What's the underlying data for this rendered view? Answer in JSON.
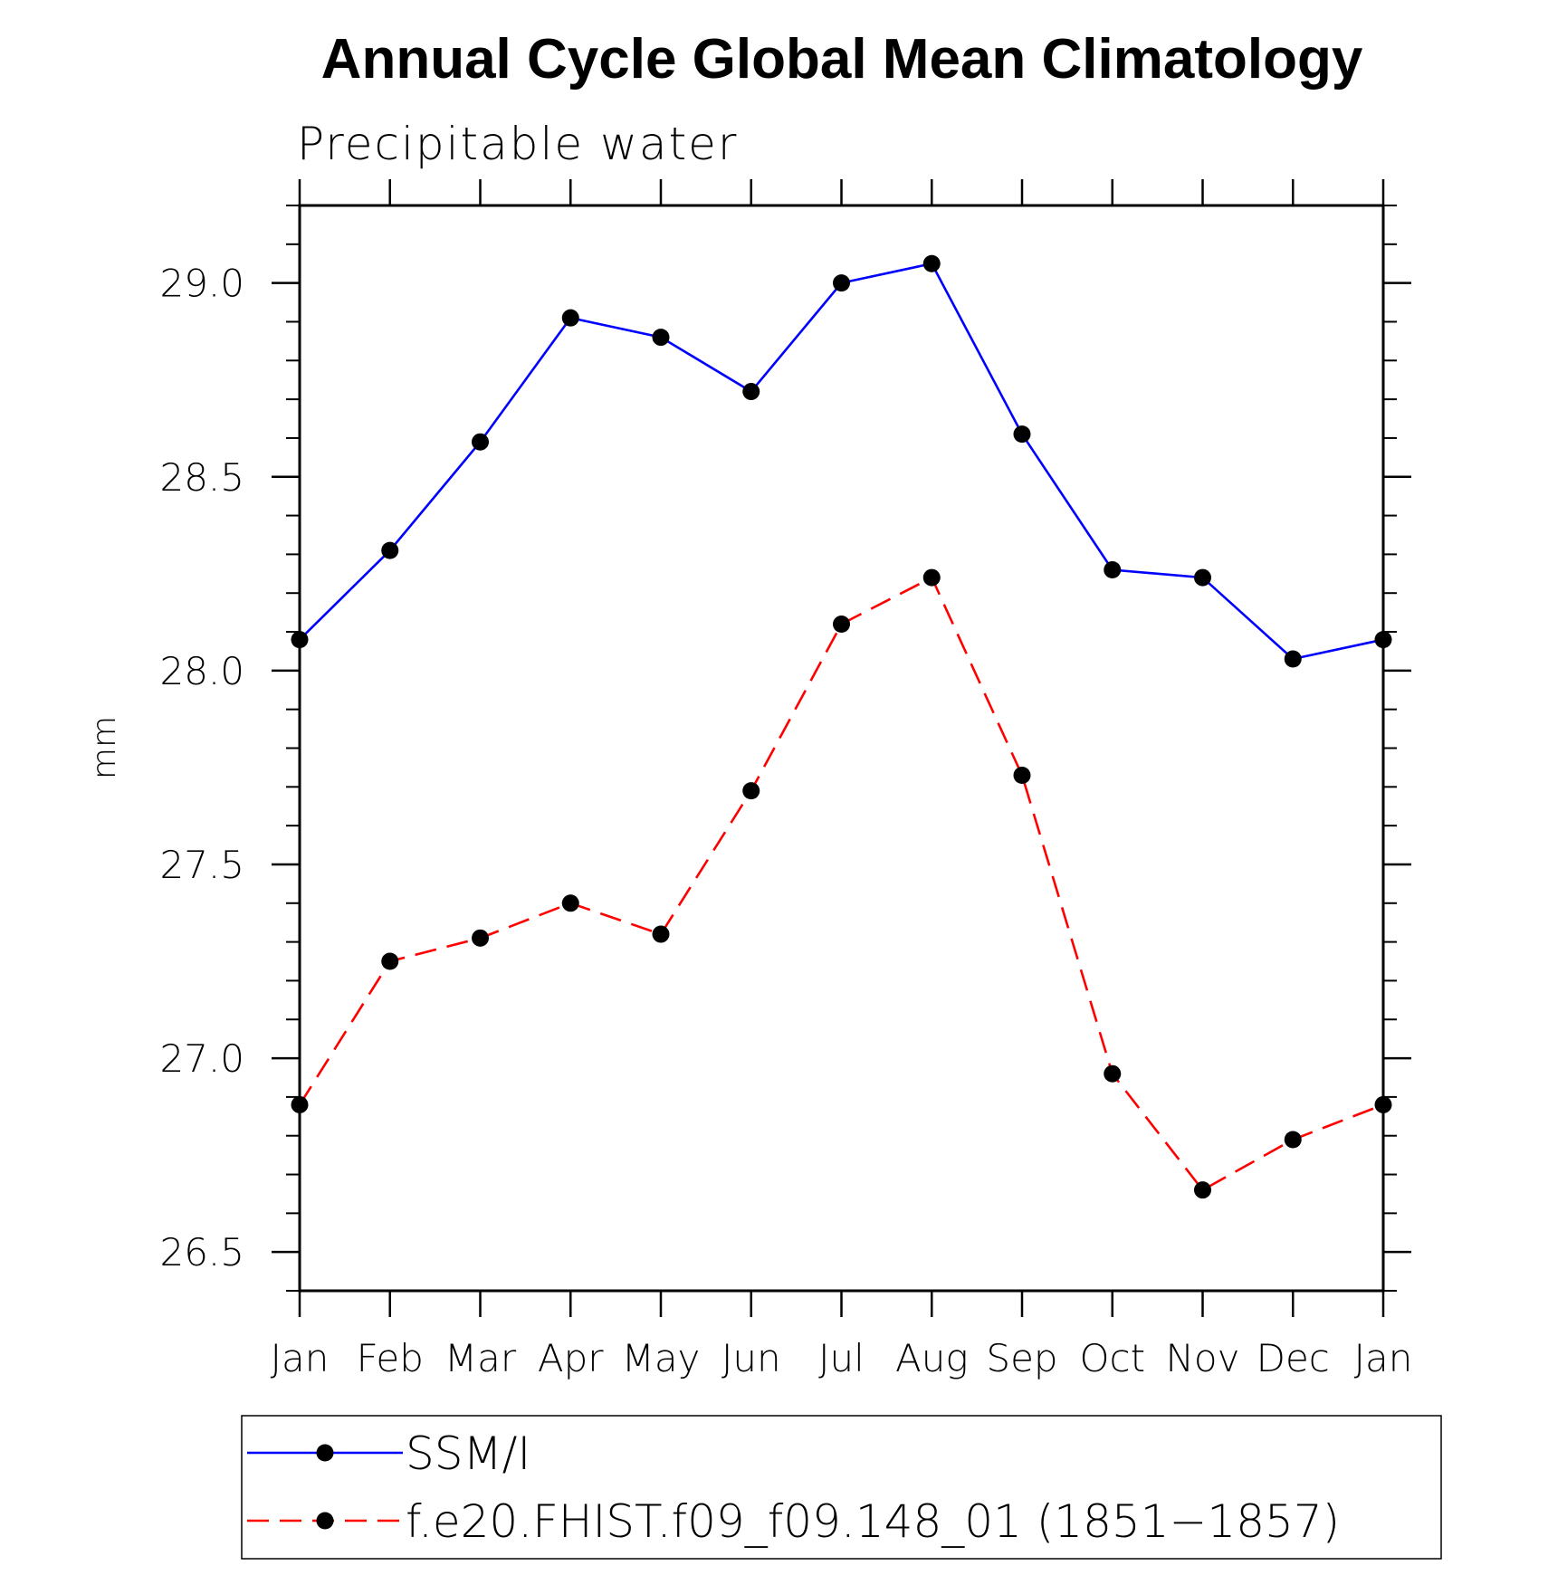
{
  "chart_data": {
    "type": "line",
    "title": "Annual Cycle Global Mean Climatology",
    "subtitle": "Precipitable water",
    "xlabel": "",
    "ylabel": "mm",
    "categories": [
      "Jan",
      "Feb",
      "Mar",
      "Apr",
      "May",
      "Jun",
      "Jul",
      "Aug",
      "Sep",
      "Oct",
      "Nov",
      "Dec",
      "Jan"
    ],
    "ylim": [
      26.4,
      29.2
    ],
    "yticks": [
      26.5,
      27.0,
      27.5,
      28.0,
      28.5,
      29.0
    ],
    "ytick_labels": [
      "26.5",
      "27.0",
      "27.5",
      "28.0",
      "28.5",
      "29.0"
    ],
    "yminor_step": 0.1,
    "grid": false,
    "legend_position": "bottom",
    "series": [
      {
        "name": "SSM/I",
        "color": "#0000ff",
        "dash": "solid",
        "values": [
          28.08,
          28.31,
          28.59,
          28.91,
          28.86,
          28.72,
          29.0,
          29.05,
          28.61,
          28.26,
          28.24,
          28.03,
          28.08
        ]
      },
      {
        "name": "f.e20.FHIST.f09_f09.148_01 (1851−1857)",
        "color": "#ff0000",
        "dash": "dashed",
        "values": [
          26.88,
          27.25,
          27.31,
          27.4,
          27.32,
          27.69,
          28.12,
          28.24,
          27.73,
          26.96,
          26.66,
          26.79,
          26.88
        ]
      }
    ]
  }
}
